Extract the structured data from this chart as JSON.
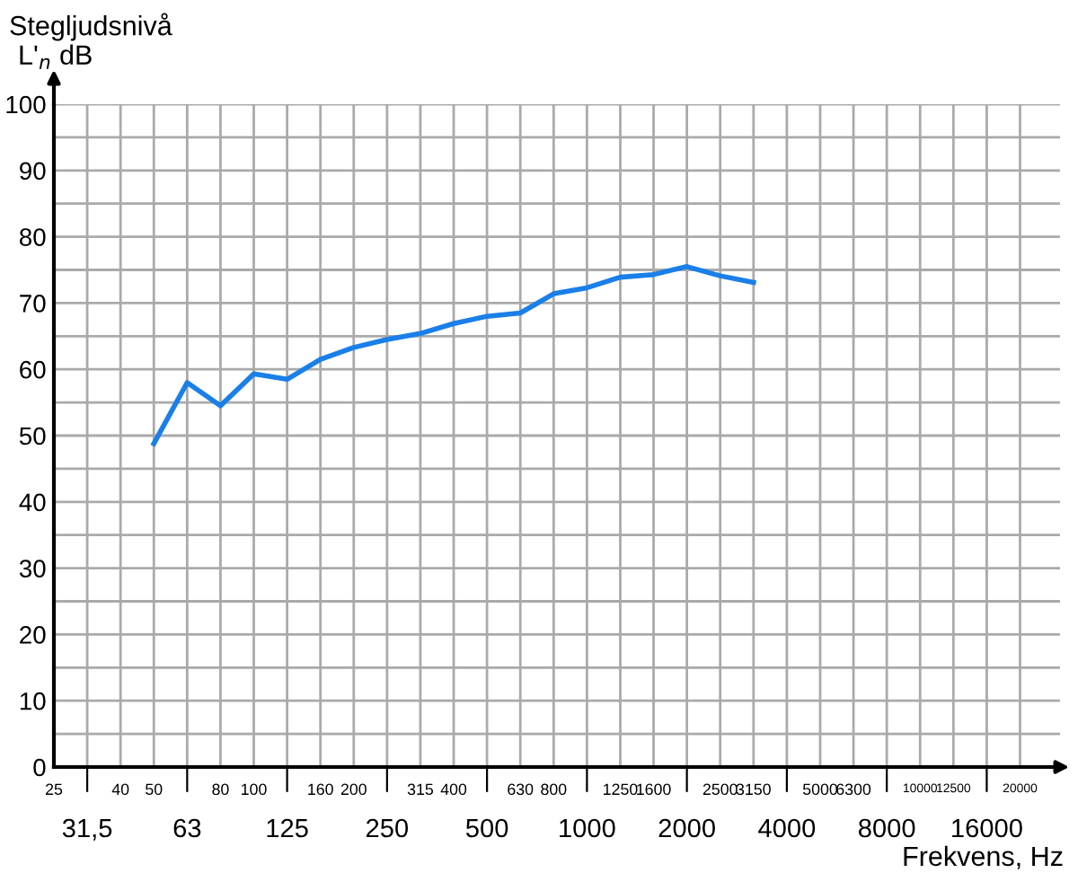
{
  "chart_data": {
    "type": "line",
    "ylabel": "Stegljudsnivå\nL'$_{n}$ dB",
    "xlabel": "Frekvens, Hz",
    "categories": [
      "25",
      "31,5",
      "40",
      "50",
      "63",
      "80",
      "100",
      "125",
      "160",
      "200",
      "250",
      "315",
      "400",
      "500",
      "630",
      "800",
      "1000",
      "1250",
      "1600",
      "2000",
      "2500",
      "3150",
      "4000",
      "5000",
      "6300",
      "8000",
      "10000",
      "12500",
      "16000",
      "20000"
    ],
    "series": [
      {
        "color": "#1a7fe8",
        "values": [
          null,
          null,
          null,
          48.8,
          58.0,
          54.5,
          59.3,
          58.5,
          61.5,
          63.3,
          64.5,
          65.4,
          66.9,
          68.0,
          68.5,
          71.4,
          72.3,
          73.9,
          74.3,
          75.5,
          74.1,
          73.1,
          null,
          null,
          null,
          null,
          null,
          null,
          null,
          null
        ]
      }
    ],
    "ylim": [
      0,
      100
    ],
    "yticks": [
      0,
      {
        "value": 5,
        "label": null
      },
      10,
      {
        "value": 15,
        "label": null
      },
      20,
      {
        "value": 25,
        "label": null
      },
      30,
      {
        "value": 35,
        "label": null
      },
      40,
      {
        "value": 45,
        "label": null
      },
      50,
      {
        "value": 55,
        "label": null
      },
      60,
      {
        "value": 65,
        "label": null
      },
      70,
      {
        "value": 75,
        "label": null
      },
      80,
      {
        "value": 85,
        "label": null
      },
      90,
      {
        "value": 95,
        "label": null
      },
      100
    ],
    "grid": true,
    "marker": "none",
    "line_style": "solid"
  }
}
